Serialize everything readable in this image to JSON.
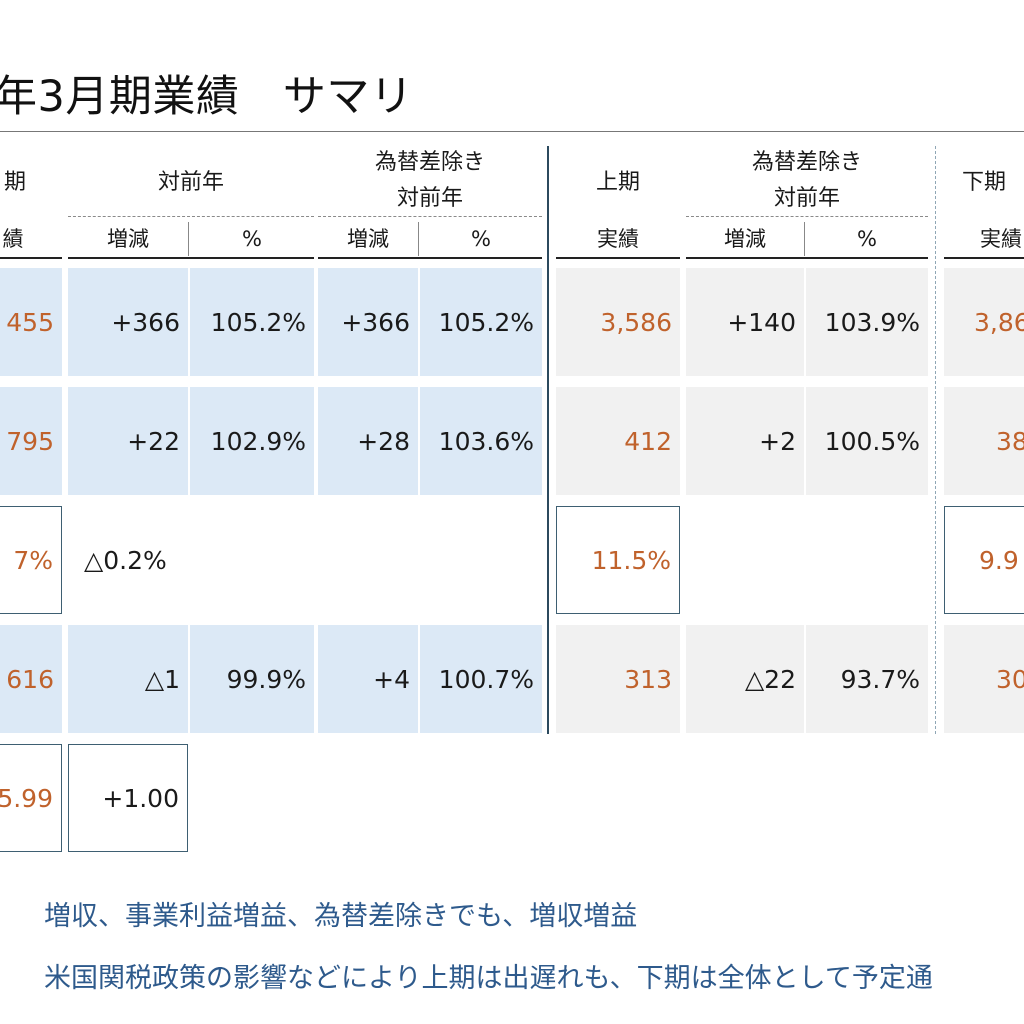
{
  "title": "年3月期業績　サマリ",
  "headers": {
    "col1_top": "期",
    "col1_sub": "績",
    "yoy": "対前年",
    "fx_yoy_line1": "為替差除き",
    "fx_yoy_line2": "対前年",
    "h1": "上期",
    "h1_sub": "実績",
    "h1_fx_line1": "為替差除き",
    "h1_fx_line2": "対前年",
    "h2": "下期",
    "h2_sub": "実績",
    "delta": "増減",
    "pct": "%"
  },
  "rows": [
    {
      "fy": "455",
      "yoy_d": "+366",
      "yoy_p": "105.2%",
      "fx_d": "+366",
      "fx_p": "105.2%",
      "h1": "3,586",
      "h1_d": "+140",
      "h1_p": "103.9%",
      "h2": "3,86"
    },
    {
      "fy": "795",
      "yoy_d": "+22",
      "yoy_p": "102.9%",
      "fx_d": "+28",
      "fx_p": "103.6%",
      "h1": "412",
      "h1_d": "+2",
      "h1_p": "100.5%",
      "h2": "38"
    },
    {
      "fy": "7%",
      "yoy_d": "△0.2%",
      "h1": "11.5%",
      "h2": "9.9"
    },
    {
      "fy": "616",
      "yoy_d": "△1",
      "yoy_p": "99.9%",
      "fx_d": "+4",
      "fx_p": "100.7%",
      "h1": "313",
      "h1_d": "△22",
      "h1_p": "93.7%",
      "h2": "30"
    },
    {
      "fy": "5.99",
      "yoy_d": "+1.00"
    }
  ],
  "notes": [
    "増収、事業利益増益、為替差除きでも、増収増益",
    "米国関税政策の影響などにより上期は出遅れも、下期は全体として予定通"
  ]
}
